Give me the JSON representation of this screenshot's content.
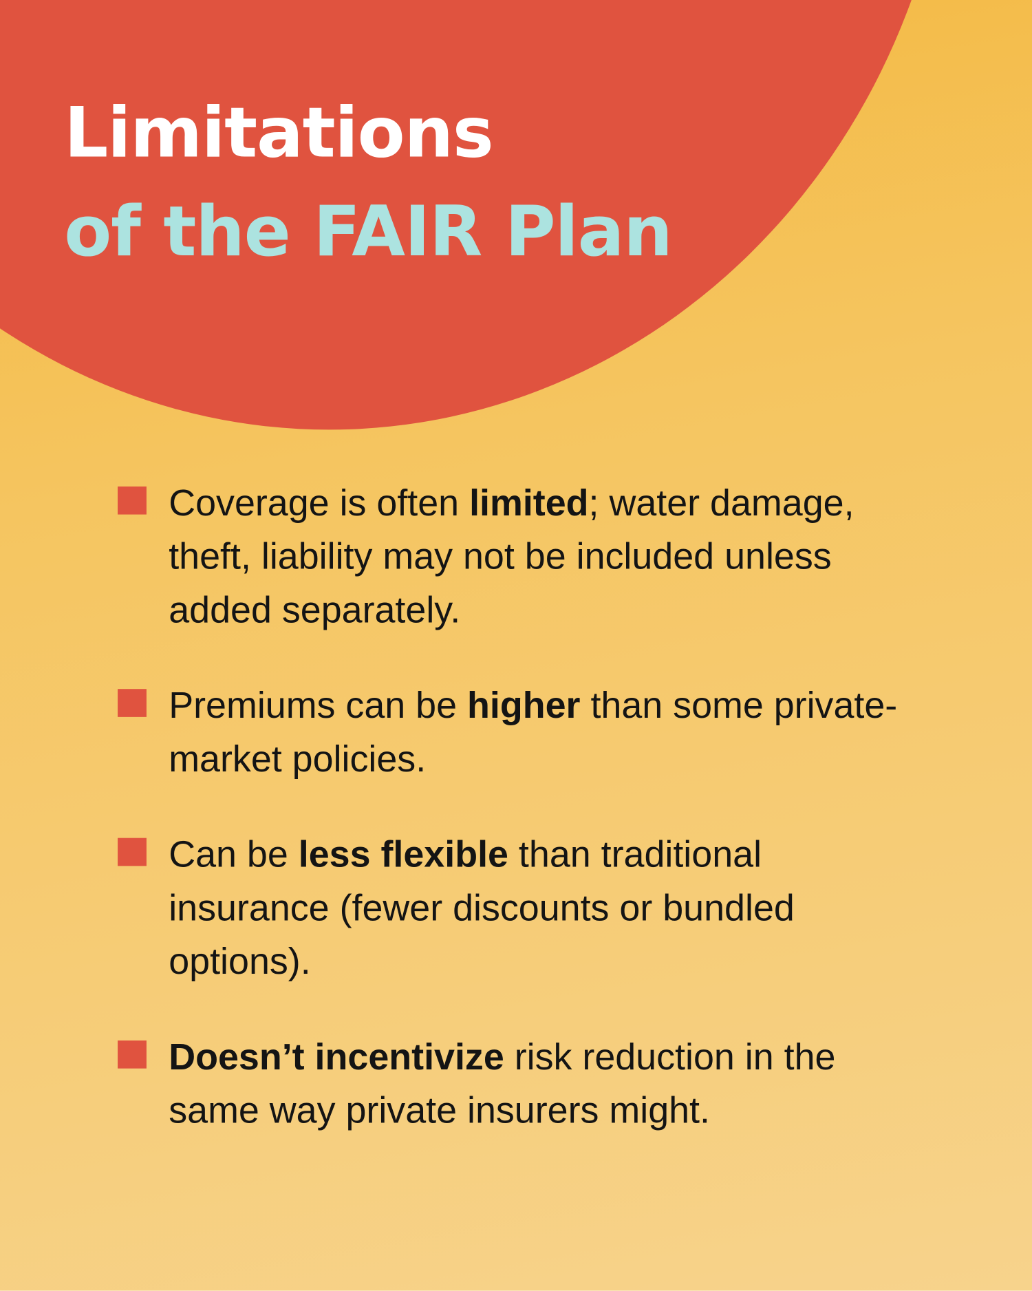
{
  "title": {
    "line1": "Limitations",
    "line2": "of the FAIR Plan"
  },
  "colors": {
    "accent_red": "#e0533f",
    "title_cyan": "#ace3e0",
    "background_yellow": "#f5c560",
    "text": "#141414"
  },
  "bullets": [
    {
      "pre": "Coverage is often ",
      "bold": "limited",
      "post": "; water damage, theft, liability may not be included unless added separately."
    },
    {
      "pre": "Premiums can be ",
      "bold": "higher",
      "post": " than some private-market policies."
    },
    {
      "pre": "Can be ",
      "bold": "less flexible",
      "post": " than traditional insurance (fewer discounts or bundled options)."
    },
    {
      "pre": "",
      "bold": "Doesn’t incentivize",
      "post": " risk reduction in the same way private insurers might."
    }
  ]
}
